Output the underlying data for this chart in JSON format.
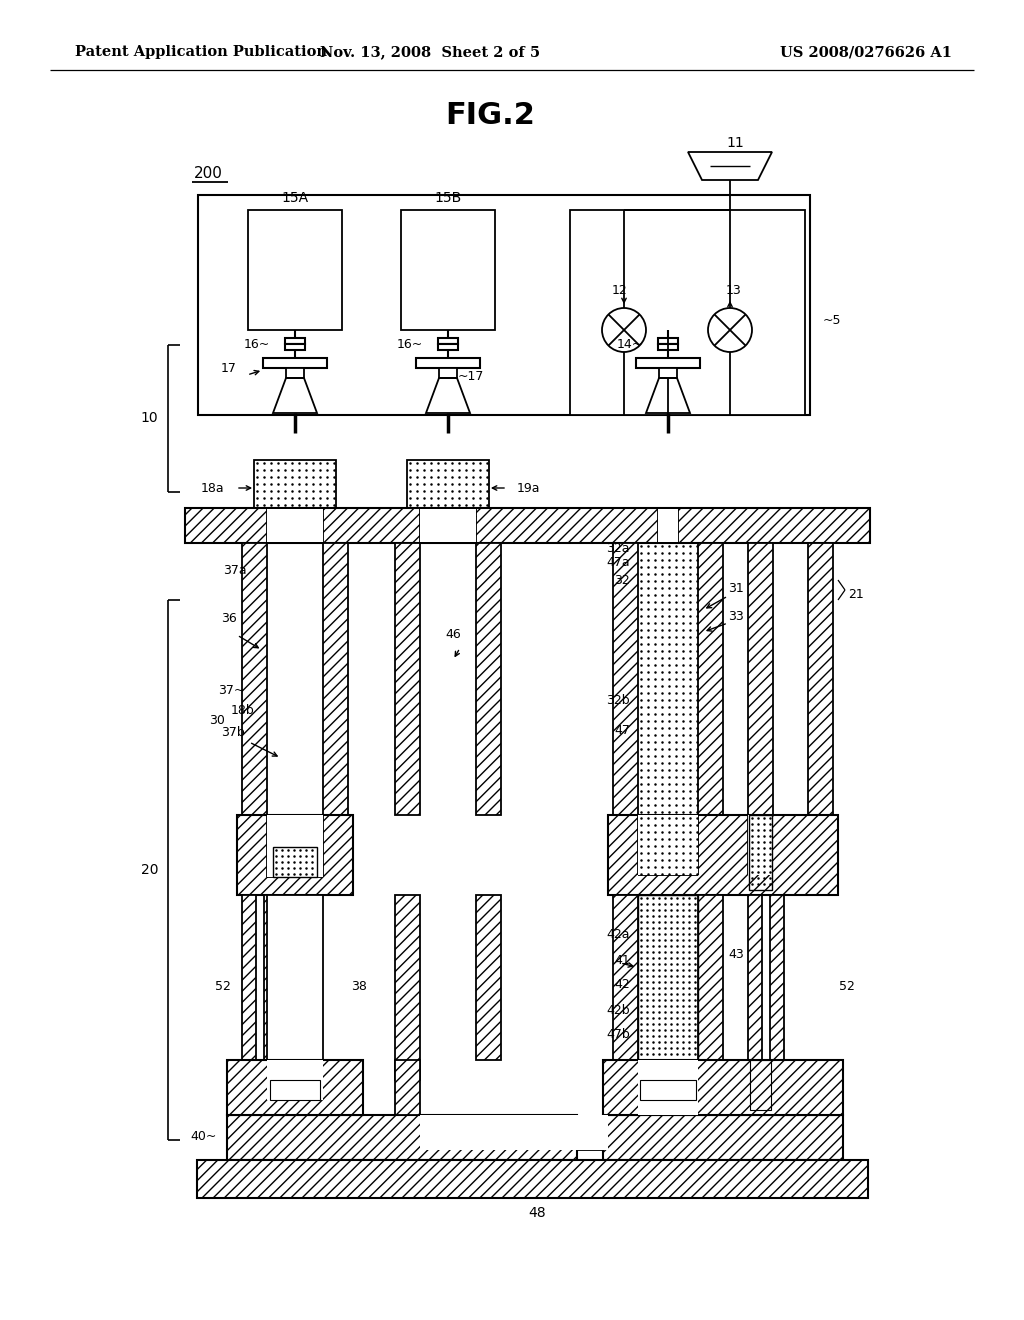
{
  "bg_color": "#ffffff",
  "header_left": "Patent Application Publication",
  "header_center": "Nov. 13, 2008  Sheet 2 of 5",
  "header_right": "US 2008/0276626 A1",
  "title": "FIG.2"
}
